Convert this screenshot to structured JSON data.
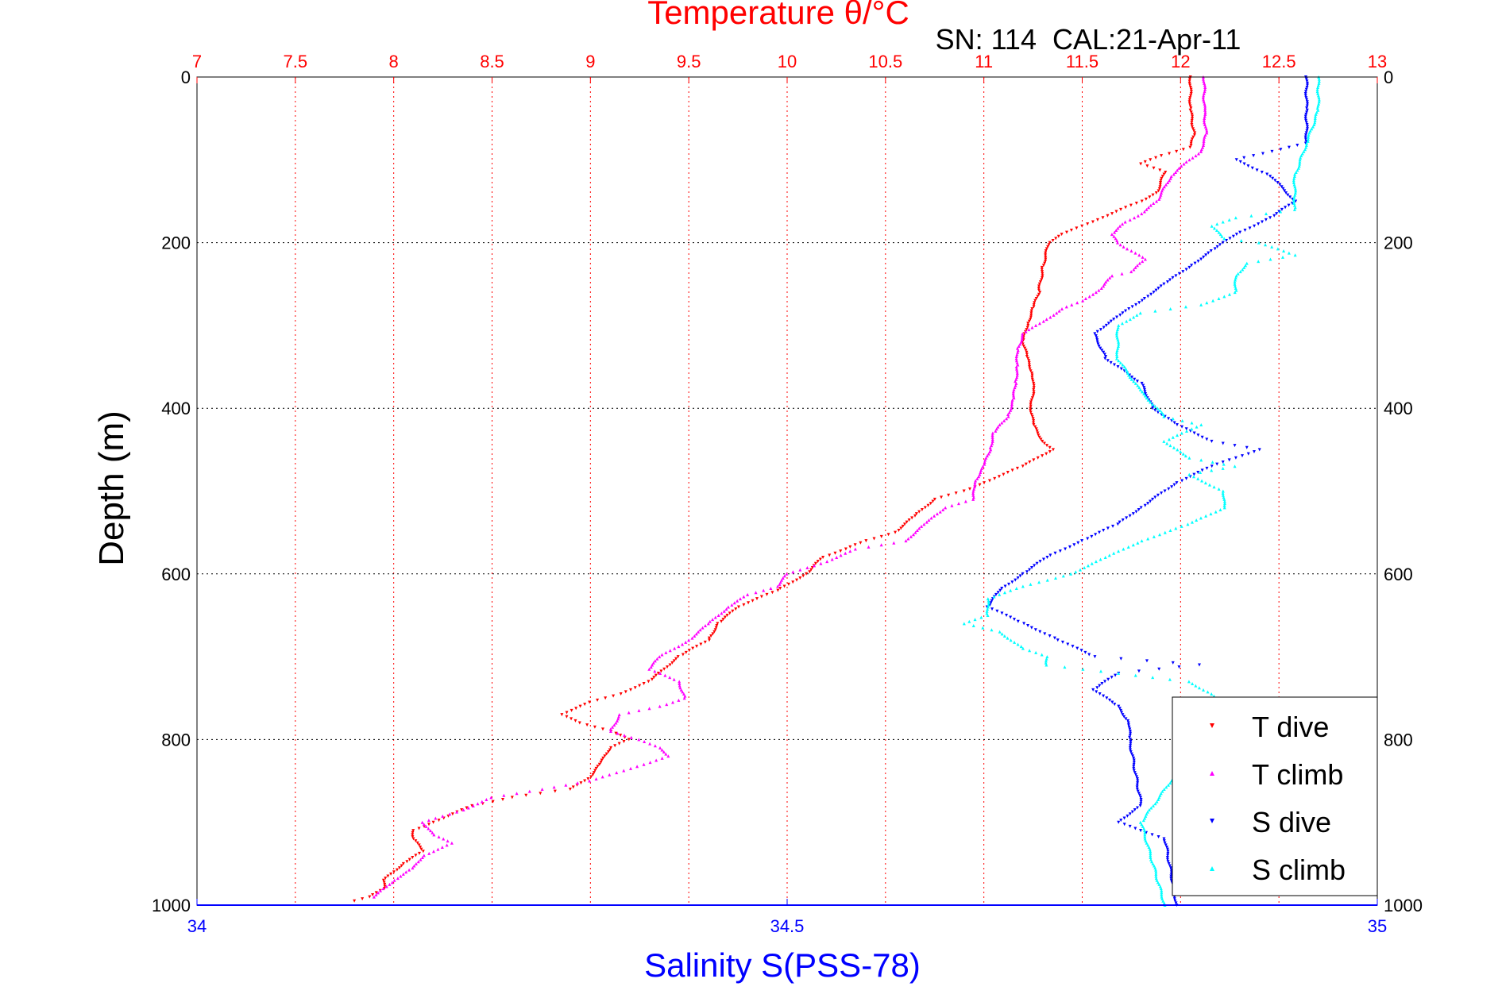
{
  "chart_data": {
    "type": "scatter",
    "title": "Temperature θ/°C",
    "subtitle": "SN: 114  CAL:21-Apr-11",
    "xlabel_top": "Temperature θ/°C",
    "xlabel_bottom": "Salinity S(PSS-78)",
    "ylabel": "Depth (m)",
    "temp_axis": {
      "range": [
        7,
        13
      ],
      "ticks": [
        "7",
        "7.5",
        "8",
        "8.5",
        "9",
        "9.5",
        "10",
        "10.5",
        "11",
        "11.5",
        "12",
        "12.5",
        "13"
      ],
      "color": "#ff0000"
    },
    "sal_axis": {
      "range": [
        34,
        35
      ],
      "ticks": [
        "34",
        "34.5",
        "35"
      ],
      "color": "#0000ff"
    },
    "depth_axis": {
      "range": [
        0,
        1000
      ],
      "ticks": [
        "0",
        "200",
        "400",
        "600",
        "800",
        "1000"
      ],
      "reversed": true
    },
    "grid": true,
    "legend": {
      "position": "bottom-right",
      "entries": [
        "T dive",
        "T climb",
        "S dive",
        "S climb"
      ]
    },
    "series": [
      {
        "name": "T dive",
        "axis": "temp",
        "color": "#ff0000",
        "marker": "triangle-down",
        "points": [
          [
            12.05,
            0
          ],
          [
            12.05,
            40
          ],
          [
            12.07,
            70
          ],
          [
            12.05,
            85
          ],
          [
            11.9,
            95
          ],
          [
            11.8,
            105
          ],
          [
            11.92,
            115
          ],
          [
            11.88,
            140
          ],
          [
            11.8,
            150
          ],
          [
            11.7,
            160
          ],
          [
            11.55,
            175
          ],
          [
            11.4,
            190
          ],
          [
            11.33,
            200
          ],
          [
            11.3,
            230
          ],
          [
            11.28,
            260
          ],
          [
            11.25,
            280
          ],
          [
            11.22,
            300
          ],
          [
            11.2,
            320
          ],
          [
            11.22,
            340
          ],
          [
            11.25,
            360
          ],
          [
            11.25,
            380
          ],
          [
            11.24,
            400
          ],
          [
            11.25,
            420
          ],
          [
            11.3,
            440
          ],
          [
            11.35,
            450
          ],
          [
            11.2,
            470
          ],
          [
            11.0,
            490
          ],
          [
            10.9,
            500
          ],
          [
            10.75,
            510
          ],
          [
            10.65,
            530
          ],
          [
            10.55,
            550
          ],
          [
            10.4,
            560
          ],
          [
            10.3,
            570
          ],
          [
            10.18,
            580
          ],
          [
            10.1,
            600
          ],
          [
            9.95,
            620
          ],
          [
            9.85,
            630
          ],
          [
            9.75,
            640
          ],
          [
            9.65,
            660
          ],
          [
            9.6,
            680
          ],
          [
            9.45,
            700
          ],
          [
            9.4,
            710
          ],
          [
            9.3,
            730
          ],
          [
            9.15,
            745
          ],
          [
            9.0,
            755
          ],
          [
            8.85,
            770
          ],
          [
            8.95,
            780
          ],
          [
            9.1,
            790
          ],
          [
            9.2,
            800
          ],
          [
            9.1,
            810
          ],
          [
            9.05,
            830
          ],
          [
            9.0,
            845
          ],
          [
            8.9,
            860
          ],
          [
            8.6,
            870
          ],
          [
            8.4,
            880
          ],
          [
            8.2,
            900
          ],
          [
            8.1,
            910
          ],
          [
            8.1,
            920
          ],
          [
            8.15,
            935
          ],
          [
            8.05,
            950
          ],
          [
            8.0,
            960
          ],
          [
            7.95,
            970
          ],
          [
            7.95,
            980
          ],
          [
            7.88,
            990
          ],
          [
            7.8,
            995
          ]
        ]
      },
      {
        "name": "T climb",
        "axis": "temp",
        "color": "#ff00ff",
        "marker": "triangle-up",
        "points": [
          [
            12.12,
            0
          ],
          [
            12.12,
            40
          ],
          [
            12.13,
            70
          ],
          [
            12.1,
            90
          ],
          [
            12.02,
            105
          ],
          [
            11.95,
            120
          ],
          [
            11.88,
            150
          ],
          [
            11.8,
            165
          ],
          [
            11.72,
            175
          ],
          [
            11.65,
            190
          ],
          [
            11.68,
            200
          ],
          [
            11.75,
            210
          ],
          [
            11.82,
            220
          ],
          [
            11.75,
            235
          ],
          [
            11.65,
            240
          ],
          [
            11.6,
            255
          ],
          [
            11.5,
            270
          ],
          [
            11.4,
            280
          ],
          [
            11.3,
            295
          ],
          [
            11.2,
            310
          ],
          [
            11.17,
            330
          ],
          [
            11.17,
            350
          ],
          [
            11.16,
            370
          ],
          [
            11.15,
            390
          ],
          [
            11.12,
            410
          ],
          [
            11.05,
            430
          ],
          [
            11.03,
            450
          ],
          [
            11.0,
            470
          ],
          [
            10.95,
            490
          ],
          [
            10.95,
            510
          ],
          [
            10.8,
            520
          ],
          [
            10.7,
            540
          ],
          [
            10.6,
            560
          ],
          [
            10.35,
            570
          ],
          [
            10.2,
            585
          ],
          [
            10.0,
            600
          ],
          [
            9.95,
            615
          ],
          [
            9.8,
            625
          ],
          [
            9.7,
            640
          ],
          [
            9.6,
            660
          ],
          [
            9.5,
            680
          ],
          [
            9.35,
            700
          ],
          [
            9.3,
            715
          ],
          [
            9.45,
            730
          ],
          [
            9.48,
            750
          ],
          [
            9.35,
            760
          ],
          [
            9.15,
            770
          ],
          [
            9.1,
            790
          ],
          [
            9.25,
            800
          ],
          [
            9.35,
            810
          ],
          [
            9.4,
            820
          ],
          [
            9.2,
            835
          ],
          [
            9.0,
            850
          ],
          [
            8.75,
            860
          ],
          [
            8.5,
            870
          ],
          [
            8.35,
            885
          ],
          [
            8.15,
            900
          ],
          [
            8.2,
            915
          ],
          [
            8.3,
            925
          ],
          [
            8.15,
            940
          ],
          [
            8.1,
            955
          ],
          [
            8.0,
            970
          ],
          [
            7.95,
            980
          ],
          [
            7.9,
            990
          ]
        ]
      },
      {
        "name": "S dive",
        "axis": "sal",
        "color": "#0000ff",
        "marker": "triangle-down",
        "points": [
          [
            34.94,
            0
          ],
          [
            34.94,
            40
          ],
          [
            34.94,
            80
          ],
          [
            34.88,
            100
          ],
          [
            34.91,
            120
          ],
          [
            34.93,
            150
          ],
          [
            34.91,
            170
          ],
          [
            34.88,
            190
          ],
          [
            34.86,
            210
          ],
          [
            34.84,
            230
          ],
          [
            34.82,
            250
          ],
          [
            34.8,
            270
          ],
          [
            34.78,
            290
          ],
          [
            34.76,
            310
          ],
          [
            34.77,
            340
          ],
          [
            34.8,
            370
          ],
          [
            34.81,
            400
          ],
          [
            34.83,
            420
          ],
          [
            34.86,
            440
          ],
          [
            34.9,
            450
          ],
          [
            34.86,
            470
          ],
          [
            34.83,
            490
          ],
          [
            34.82,
            500
          ],
          [
            34.8,
            520
          ],
          [
            34.78,
            540
          ],
          [
            34.75,
            560
          ],
          [
            34.72,
            580
          ],
          [
            34.7,
            600
          ],
          [
            34.68,
            620
          ],
          [
            34.67,
            640
          ],
          [
            34.7,
            660
          ],
          [
            34.73,
            680
          ],
          [
            34.76,
            700
          ],
          [
            34.85,
            710
          ],
          [
            34.78,
            720
          ],
          [
            34.76,
            740
          ],
          [
            34.78,
            760
          ],
          [
            34.79,
            780
          ],
          [
            34.79,
            800
          ],
          [
            34.8,
            880
          ],
          [
            34.78,
            900
          ],
          [
            34.82,
            920
          ],
          [
            34.83,
            1000
          ]
        ]
      },
      {
        "name": "S climb",
        "axis": "sal",
        "color": "#00ffff",
        "marker": "triangle-up",
        "points": [
          [
            34.95,
            0
          ],
          [
            34.95,
            40
          ],
          [
            34.94,
            80
          ],
          [
            34.93,
            120
          ],
          [
            34.93,
            160
          ],
          [
            34.88,
            170
          ],
          [
            34.86,
            180
          ],
          [
            34.87,
            195
          ],
          [
            34.9,
            200
          ],
          [
            34.93,
            215
          ],
          [
            34.89,
            225
          ],
          [
            34.88,
            240
          ],
          [
            34.88,
            260
          ],
          [
            34.85,
            275
          ],
          [
            34.8,
            285
          ],
          [
            34.78,
            300
          ],
          [
            34.78,
            340
          ],
          [
            34.8,
            380
          ],
          [
            34.82,
            410
          ],
          [
            34.85,
            420
          ],
          [
            34.82,
            440
          ],
          [
            34.84,
            460
          ],
          [
            34.88,
            470
          ],
          [
            34.84,
            480
          ],
          [
            34.87,
            500
          ],
          [
            34.87,
            520
          ],
          [
            34.84,
            540
          ],
          [
            34.8,
            560
          ],
          [
            34.77,
            580
          ],
          [
            34.74,
            600
          ],
          [
            34.7,
            615
          ],
          [
            34.67,
            630
          ],
          [
            34.67,
            650
          ],
          [
            34.65,
            660
          ],
          [
            34.68,
            670
          ],
          [
            34.7,
            690
          ],
          [
            34.72,
            700
          ],
          [
            34.72,
            710
          ],
          [
            34.84,
            730
          ],
          [
            34.86,
            745
          ],
          [
            34.87,
            760
          ],
          [
            34.8,
            900
          ],
          [
            34.82,
            1000
          ]
        ]
      }
    ]
  }
}
